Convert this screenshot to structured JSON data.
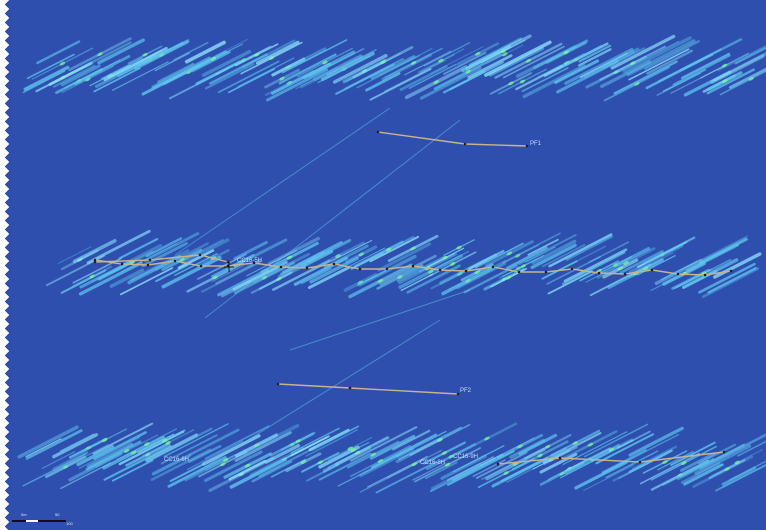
{
  "map": {
    "colors": {
      "background": "#2f4fae",
      "fracture": "#5fc6f0",
      "fracture_bright": "#8ee4ff",
      "hotspot": "#7dff9a",
      "well_path": "#c9b48a",
      "survey_point": "#202020"
    },
    "wells": [
      {
        "label": "PF1"
      },
      {
        "label": "CC16-5H"
      },
      {
        "label": "PF2"
      },
      {
        "label": "CC16-6H"
      },
      {
        "label": "CC16-8H"
      },
      {
        "label": "CC16-9H"
      }
    ]
  },
  "scale_bar": {
    "labels": [
      "0m",
      "50",
      "100"
    ],
    "icon": "scale-bar-icon"
  }
}
